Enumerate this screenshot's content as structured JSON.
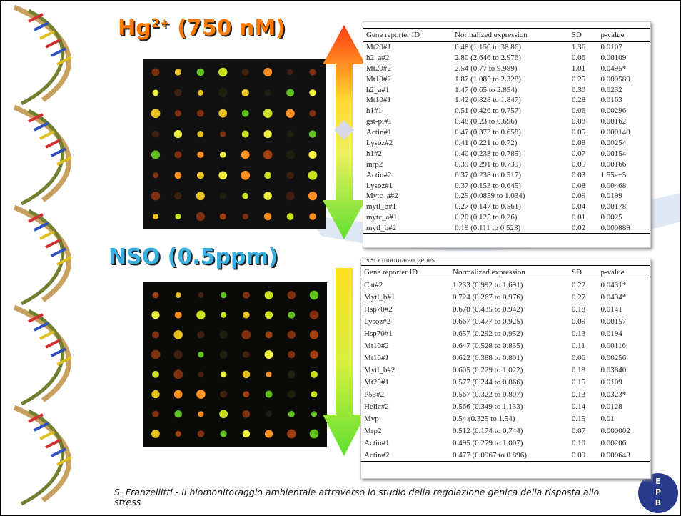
{
  "panels": [
    {
      "title": {
        "main": "Hg",
        "sup": "2+",
        "rest": " (750 nM)"
      },
      "table": {
        "header": [
          "Gene reporter ID",
          "Normalized expression",
          "SD",
          "p-value"
        ],
        "rows": [
          [
            "Mt20#1",
            "6.48 (1.156 to 38.86)",
            "1.36",
            "0.0107"
          ],
          [
            "h2_a#2",
            "2.80 (2.646 to 2.976)",
            "0.06",
            "0.00109"
          ],
          [
            "Mt20#2",
            "2.54 (0.77 to 9.989)",
            "1.01",
            "0.0495*"
          ],
          [
            "Mt10#2",
            "1.87 (1.085 to 2.328)",
            "0.25",
            "0.000589"
          ],
          [
            "h2_a#1",
            "1.47 (0.65 to 2.854)",
            "0.30",
            "0.0232"
          ],
          [
            "Mt10#1",
            "1.42 (0.828 to 1.847)",
            "0.28",
            "0.0163"
          ],
          [
            "h1#1",
            "0.51 (0.426 to 0.757)",
            "0.06",
            "0.00296"
          ],
          [
            "gst-pi#1",
            "0.48 (0.23 to 0.696)",
            "0.08",
            "0.00162"
          ],
          [
            "Actin#1",
            "0.47 (0.373 to 0.658)",
            "0.05",
            "0.000148"
          ],
          [
            "Lysoz#2",
            "0.41 (0.221 to 0.72)",
            "0.08",
            "0.00254"
          ],
          [
            "h1#2",
            "0.40 (0.233 to 0.785)",
            "0.07",
            "0.00154"
          ],
          [
            "mrp2",
            "0.39 (0.291 to 0.739)",
            "0.05",
            "0.00166"
          ],
          [
            "Actin#2",
            "0.37 (0.238 to 0.517)",
            "0.03",
            "1.55e−5"
          ],
          [
            "Lysoz#1",
            "0.37 (0.153 to 0.645)",
            "0.08",
            "0.00468"
          ],
          [
            "Mytc_a#2",
            "0.29 (0.0859 to 1.034)",
            "0.09",
            "0.0199"
          ],
          [
            "mytl_b#1",
            "0.27 (0.147 to 0.561)",
            "0.04",
            "0.00178"
          ],
          [
            "mytc_a#1",
            "0.20 (0.125 to 0.26)",
            "0.01",
            "0.0025"
          ],
          [
            "mytl_b#2",
            "0.19 (0.111 to 0.523)",
            "0.02",
            "0.000889"
          ]
        ]
      }
    },
    {
      "title": {
        "main": "NSO (0.5ppm)"
      },
      "table": {
        "caption": "NSO modulated genes",
        "header": [
          "Gene reporter ID",
          "Normalized expression",
          "SD",
          "p-value"
        ],
        "rows": [
          [
            "Cat#2",
            "1.233 (0.992 to 1.691)",
            "0.22",
            "0.0431*"
          ],
          [
            "Mytl_b#1",
            "0.724 (0.267 to 0.976)",
            "0.27",
            "0.0434*"
          ],
          [
            "Hsp70#2",
            "0.678 (0.435 to 0.942)",
            "0.18",
            "0.0141"
          ],
          [
            "Lysoz#2",
            "0.667 (0.477 to 0.925)",
            "0.09",
            "0.00157"
          ],
          [
            "Hsp70#1",
            "0.657 (0.292 to 0.952)",
            "0.13",
            "0.0194"
          ],
          [
            "Mt10#2",
            "0.647 (0.528 to 0.855)",
            "0.11",
            "0.00116"
          ],
          [
            "Mt10#1",
            "0.622 (0.388 to 0.801)",
            "0.06",
            "0.00256"
          ],
          [
            "Mytl_b#2",
            "0.605 (0.229 to 1.022)",
            "0.18",
            "0.03840"
          ],
          [
            "Mt20#1",
            "0.577 (0.244 to 0.866)",
            "0.15",
            "0.0109"
          ],
          [
            "P53#2",
            "0.567 (0.322 to 0.807)",
            "0.13",
            "0.0323*"
          ],
          [
            "Helic#2",
            "0.566 (0.349 to 1.133)",
            "0.14",
            "0.0128"
          ],
          [
            "Mvp",
            "0.54 (0.325 to 1.54)",
            "0.15",
            "0.01"
          ],
          [
            "Mrp2",
            "0.512 (0.174 to 0.744)",
            "0.07",
            "0.000002"
          ],
          [
            "Actin#1",
            "0.495 (0.279 to 1.007)",
            "0.10",
            "0.00206"
          ],
          [
            "Actin#2",
            "0.477 (0.0967 to 0.896)",
            "0.09",
            "0.000648"
          ]
        ]
      }
    }
  ],
  "footer": "S. Franzellitti - Il biomonitoraggio ambientale attraverso lo studio della regolazione genica della risposta allo stress",
  "logo": [
    "E",
    "P",
    "B"
  ]
}
